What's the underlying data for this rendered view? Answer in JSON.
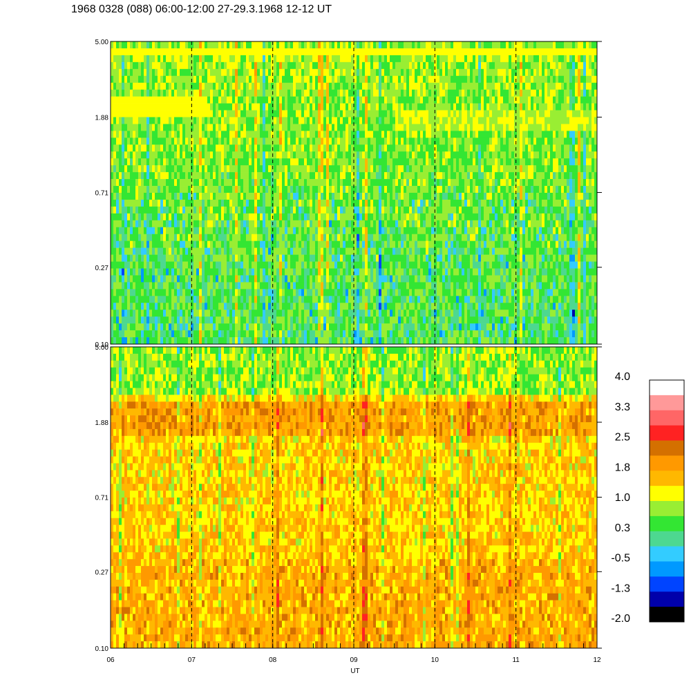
{
  "title": "1968 0328 (088) 06:00-12:00 27-29.3.1968  12-12 UT",
  "chart_data": [
    {
      "type": "heatmap",
      "panel": "upper",
      "y_scale": "log",
      "ylim": [
        0.1,
        5.0
      ],
      "y_tick_labels": [
        "5.00",
        "1.88",
        "0.71",
        "0.27",
        "0.10"
      ],
      "y_tick_values": [
        5.0,
        1.88,
        0.71,
        0.27,
        0.1
      ],
      "xlim": [
        6,
        12
      ],
      "x_tick_labels": [
        "06",
        "07",
        "08",
        "09",
        "10",
        "11",
        "12"
      ],
      "grid": "dashed vertical lines at each hour",
      "features": [
        {
          "description_value_range": [
            0.3,
            1.0
          ],
          "dominant_colors": [
            "#33e633",
            "#99ee33",
            "#4dd890"
          ]
        },
        {
          "band_y": 2.2,
          "x_range": [
            6,
            7.2
          ],
          "level": 1.0
        },
        {
          "band_y": 4.6,
          "x_range": [
            6,
            12
          ],
          "level": 1.0
        }
      ]
    },
    {
      "type": "heatmap",
      "panel": "lower",
      "y_scale": "log",
      "ylim": [
        0.1,
        5.0
      ],
      "y_tick_labels": [
        "5.00",
        "1.88",
        "0.71",
        "0.27",
        "0.10"
      ],
      "y_tick_values": [
        5.0,
        1.88,
        0.71,
        0.27,
        0.1
      ],
      "xlim": [
        6,
        12
      ],
      "x_tick_labels": [
        "06",
        "07",
        "08",
        "09",
        "10",
        "11",
        "12"
      ],
      "xlabel": "UT",
      "grid": "dashed vertical lines at each hour",
      "features": [
        {
          "description_value_range": [
            1.0,
            2.2
          ],
          "dominant_colors": [
            "#ffb800",
            "#ff9900",
            "#ffff00"
          ]
        },
        {
          "band_y": 2.0,
          "x_range": [
            6,
            12
          ],
          "level": 2.2
        }
      ]
    }
  ],
  "colorbar": {
    "labels": [
      "4.0",
      "3.3",
      "2.5",
      "1.8",
      "1.0",
      "0.3",
      "-0.5",
      "-1.3",
      "-2.0"
    ],
    "min": -2.0,
    "max": 4.0,
    "colors": [
      "#000000",
      "#0000aa",
      "#0044ff",
      "#0099ff",
      "#33ccff",
      "#4dd890",
      "#33e633",
      "#99ee33",
      "#ffff00",
      "#ffb800",
      "#ff9900",
      "#d47000",
      "#ff2222",
      "#ff6666",
      "#ff9999",
      "#ffffff"
    ]
  }
}
